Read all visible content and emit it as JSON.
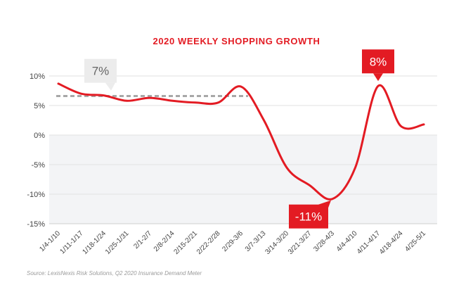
{
  "header": {
    "title": "2020 WEEKLY SHOPPING GROWTH"
  },
  "footer": {
    "source": "Source:  LexisNexis Risk Solutions, Q2 2020 Insurance Demand Meter"
  },
  "colors": {
    "line": "#e31b23",
    "title": "#e31b23",
    "average_line": "#a8a8a8",
    "callout_grey": "#ececec",
    "callout_grey_text": "#666666",
    "callout_red": "#e31b23",
    "callout_red_text": "#ffffff",
    "negative_region": "#f3f4f6",
    "grid": "#e2e2e2"
  },
  "chart_data": {
    "type": "line",
    "title": "2020 WEEKLY SHOPPING GROWTH",
    "xlabel": "",
    "ylabel": "",
    "ylim": [
      -15,
      10
    ],
    "yticks": [
      10,
      5,
      0,
      -5,
      -10,
      -15
    ],
    "ytick_labels": [
      "10%",
      "5%",
      "0%",
      "-5%",
      "-10%",
      "-15%"
    ],
    "grid": true,
    "categories": [
      "1/4-1/10",
      "1/11-1/17",
      "1/18-1/24",
      "1/25-1/31",
      "2/1-2/7",
      "2/8-2/14",
      "2/15-2/21",
      "2/22-2/28",
      "2/29-3/6",
      "3/7-3/13",
      "3/14-3/20",
      "3/21-3/27",
      "3/28-4/3",
      "4/4-4/10",
      "4/11-4/17",
      "4/18-4/24",
      "4/25-5/1"
    ],
    "series": [
      {
        "values": [
          8.7,
          7.0,
          6.7,
          5.8,
          6.3,
          5.8,
          5.5,
          5.5,
          8.2,
          2.5,
          -5.5,
          -8.5,
          -10.8,
          -5.5,
          8.3,
          1.5,
          1.8
        ]
      }
    ],
    "reference_line": {
      "value": 6.6,
      "from_category": "1/4-1/10",
      "to_category": "2/29-3/6",
      "style": "dashed"
    },
    "annotations": [
      {
        "label": "7%",
        "category": "1/18-1/24",
        "value": 6.7,
        "style": "grey"
      },
      {
        "label": "-11%",
        "category": "3/28-4/3",
        "value": -10.8,
        "style": "red"
      },
      {
        "label": "8%",
        "category": "4/11-4/17",
        "value": 8.3,
        "style": "red"
      }
    ]
  }
}
